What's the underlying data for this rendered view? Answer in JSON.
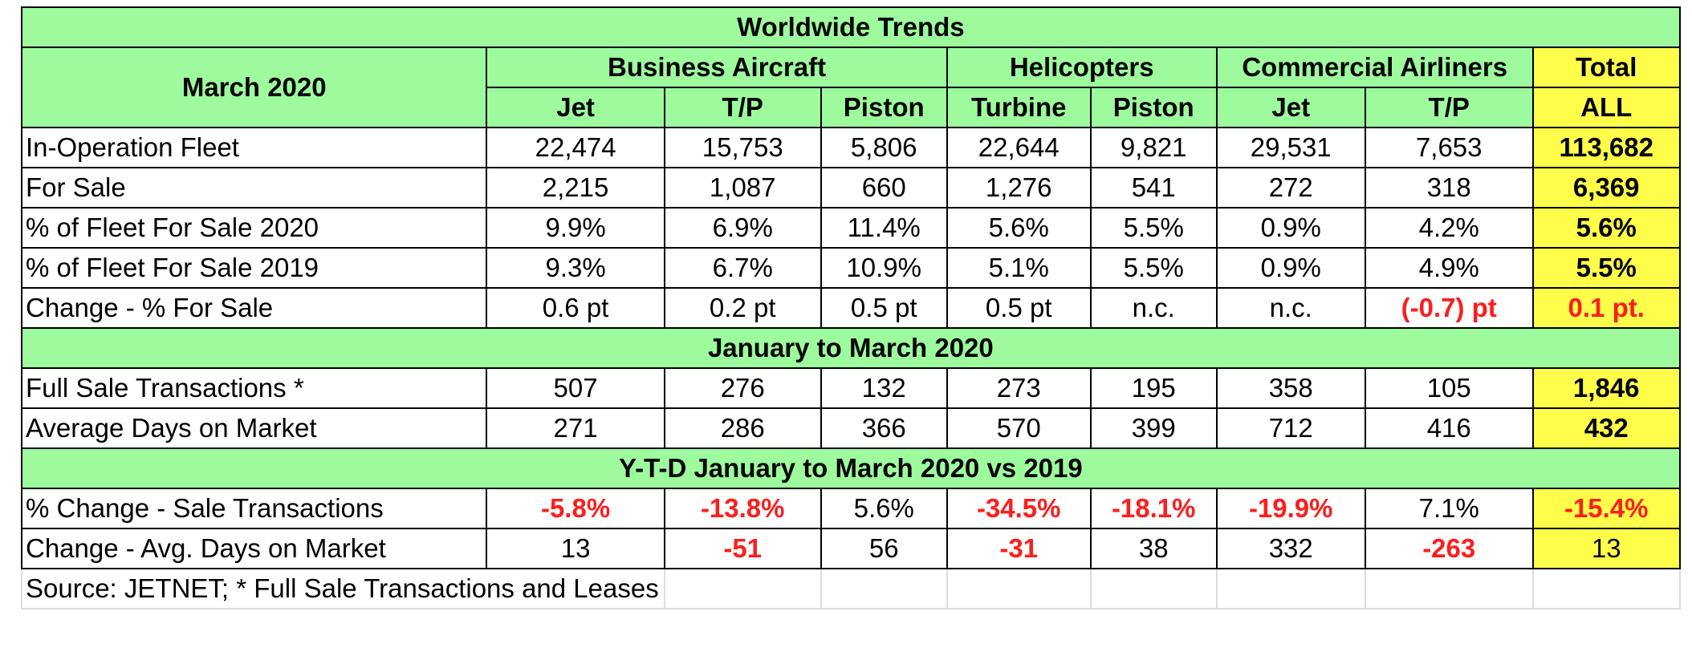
{
  "title": "Worldwide Trends",
  "period_label": "March 2020",
  "groups": {
    "business": "Business Aircraft",
    "helicopters": "Helicopters",
    "commercial": "Commercial Airliners",
    "total": "Total"
  },
  "subheaders": {
    "ba_jet": "Jet",
    "ba_tp": "T/P",
    "ba_piston": "Piston",
    "h_turbine": "Turbine",
    "h_piston": "Piston",
    "ca_jet": "Jet",
    "ca_tp": "T/P",
    "total_all": "ALL"
  },
  "section1": [
    {
      "label": "In-Operation Fleet",
      "values": [
        "22,474",
        "15,753",
        "5,806",
        "22,644",
        "9,821",
        "29,531",
        "7,653"
      ],
      "total": "113,682"
    },
    {
      "label": "For Sale",
      "values": [
        "2,215",
        "1,087",
        "660",
        "1,276",
        "541",
        "272",
        "318"
      ],
      "total": "6,369"
    },
    {
      "label": "% of Fleet For Sale 2020",
      "values": [
        "9.9%",
        "6.9%",
        "11.4%",
        "5.6%",
        "5.5%",
        "0.9%",
        "4.2%"
      ],
      "total": "5.6%"
    },
    {
      "label": "% of Fleet For Sale 2019",
      "values": [
        "9.3%",
        "6.7%",
        "10.9%",
        "5.1%",
        "5.5%",
        "0.9%",
        "4.9%"
      ],
      "total": "5.5%"
    },
    {
      "label": "Change - % For Sale",
      "values": [
        "0.6 pt",
        "0.2 pt",
        "0.5 pt",
        "0.5 pt",
        "n.c.",
        "n.c.",
        "(-0.7) pt"
      ],
      "total": "0.1 pt."
    }
  ],
  "section2_title": "January to March 2020",
  "section2": [
    {
      "label": "Full Sale Transactions *",
      "values": [
        "507",
        "276",
        "132",
        "273",
        "195",
        "358",
        "105"
      ],
      "total": "1,846"
    },
    {
      "label": "Average Days on Market",
      "values": [
        "271",
        "286",
        "366",
        "570",
        "399",
        "712",
        "416"
      ],
      "total": "432"
    }
  ],
  "section3_title": "Y-T-D January to March 2020 vs 2019",
  "section3": [
    {
      "label": "% Change  - Sale Transactions",
      "values": [
        "-5.8%",
        "-13.8%",
        "5.6%",
        "-34.5%",
        "-18.1%",
        "-19.9%",
        "7.1%"
      ],
      "total": "-15.4%"
    },
    {
      "label": "Change -  Avg. Days on Market",
      "values": [
        "13",
        "-51",
        "56",
        "-31",
        "38",
        "332",
        "-263"
      ],
      "total": "13"
    }
  ],
  "source": "Source: JETNET; * Full Sale Transactions and Leases",
  "colors": {
    "header_green": "#9dfb9e",
    "total_yellow": "#fdfd4a",
    "negative_red": "#fd1d1d"
  }
}
